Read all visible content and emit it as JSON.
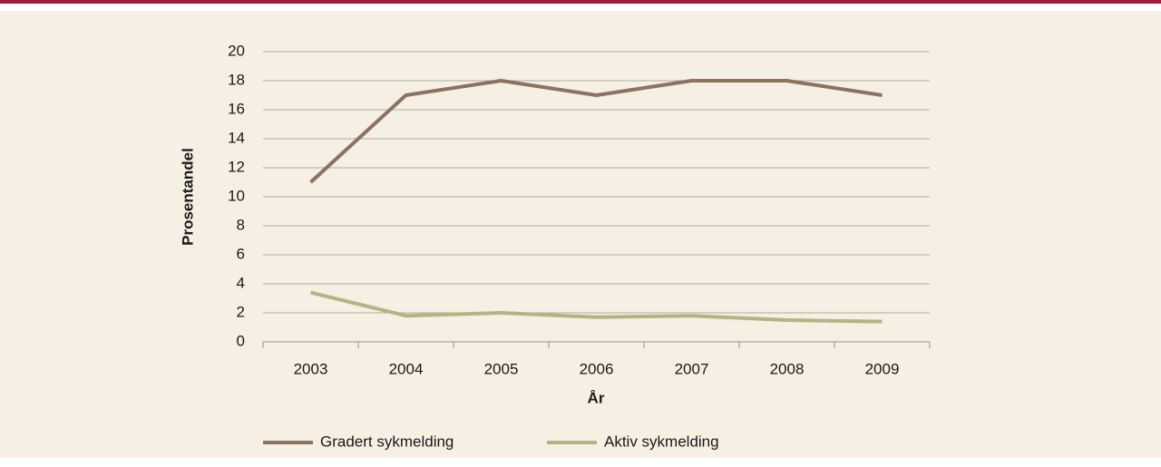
{
  "chart_data": {
    "type": "line",
    "x_label": "År",
    "y_label": "Prosentandel",
    "categories": [
      "2003",
      "2004",
      "2005",
      "2006",
      "2007",
      "2008",
      "2009"
    ],
    "series": [
      {
        "name": "Gradert sykmelding",
        "color": "#8c7264",
        "values": [
          11,
          17,
          18,
          17,
          18,
          18,
          17
        ]
      },
      {
        "name": "Aktiv sykmelding",
        "color": "#b5b384",
        "values": [
          3.4,
          1.8,
          2.0,
          1.7,
          1.8,
          1.5,
          1.4
        ]
      }
    ],
    "ylim": [
      0,
      20
    ],
    "yticks": [
      0,
      2,
      4,
      6,
      8,
      10,
      12,
      14,
      16,
      18,
      20
    ],
    "grid": true,
    "legend": "bottom"
  }
}
